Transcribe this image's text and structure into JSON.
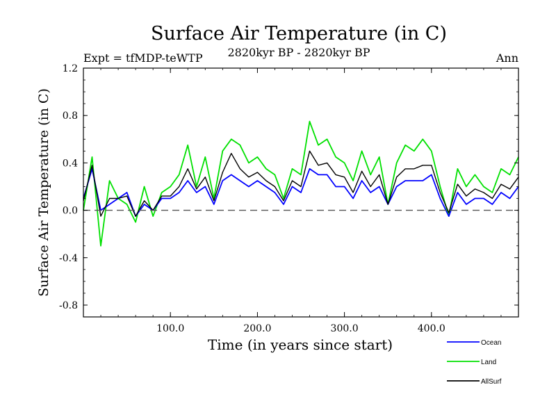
{
  "chart_data": {
    "type": "line",
    "title": "Surface Air Temperature (in C)",
    "subtitle_left": "Expt = tfMDP-teWTP",
    "subtitle_center": "2820kyr BP - 2820kyr BP",
    "subtitle_right": "Ann",
    "xlabel": "Time (in years since start)",
    "ylabel": "Surface Air Temperature (in C)",
    "xlim": [
      0,
      500
    ],
    "ylim": [
      -0.9,
      1.2
    ],
    "x_ticks": [
      {
        "value": 100,
        "label": "100.0"
      },
      {
        "value": 200,
        "label": "200.0"
      },
      {
        "value": 300,
        "label": "300.0"
      },
      {
        "value": 400,
        "label": "400.0"
      }
    ],
    "y_ticks": [
      {
        "value": -0.8,
        "label": "-0.8"
      },
      {
        "value": -0.4,
        "label": "-0.4"
      },
      {
        "value": 0.0,
        "label": "0.0"
      },
      {
        "value": 0.4,
        "label": "0.4"
      },
      {
        "value": 0.8,
        "label": "0.8"
      },
      {
        "value": 1.2,
        "label": "1.2"
      }
    ],
    "zero_line": true,
    "legend_position": "bottom-right",
    "series": [
      {
        "name": "Land",
        "color": "#00e000",
        "x": [
          0,
          10,
          20,
          30,
          40,
          50,
          60,
          70,
          80,
          90,
          100,
          110,
          120,
          130,
          140,
          150,
          160,
          170,
          180,
          190,
          200,
          210,
          220,
          230,
          240,
          250,
          260,
          270,
          280,
          290,
          300,
          310,
          320,
          330,
          340,
          350,
          360,
          370,
          380,
          390,
          400,
          410,
          420,
          430,
          440,
          450,
          460,
          470,
          480,
          490,
          500
        ],
        "values": [
          0.0,
          0.45,
          -0.3,
          0.25,
          0.1,
          0.05,
          -0.1,
          0.2,
          -0.05,
          0.15,
          0.2,
          0.3,
          0.55,
          0.2,
          0.45,
          0.1,
          0.5,
          0.6,
          0.55,
          0.4,
          0.45,
          0.35,
          0.3,
          0.1,
          0.35,
          0.3,
          0.75,
          0.55,
          0.6,
          0.45,
          0.4,
          0.25,
          0.5,
          0.3,
          0.45,
          0.05,
          0.4,
          0.55,
          0.5,
          0.6,
          0.5,
          0.2,
          -0.05,
          0.35,
          0.2,
          0.3,
          0.2,
          0.15,
          0.35,
          0.3,
          0.45
        ]
      },
      {
        "name": "Ocean",
        "color": "#0000ff",
        "x": [
          0,
          10,
          20,
          30,
          40,
          50,
          60,
          70,
          80,
          90,
          100,
          110,
          120,
          130,
          140,
          150,
          160,
          170,
          180,
          190,
          200,
          210,
          220,
          230,
          240,
          250,
          260,
          270,
          280,
          290,
          300,
          310,
          320,
          330,
          340,
          350,
          360,
          370,
          380,
          390,
          400,
          410,
          420,
          430,
          440,
          450,
          460,
          470,
          480,
          490,
          500
        ],
        "values": [
          0.1,
          0.35,
          0.0,
          0.05,
          0.1,
          0.15,
          -0.05,
          0.05,
          0.0,
          0.1,
          0.1,
          0.15,
          0.25,
          0.15,
          0.2,
          0.05,
          0.25,
          0.3,
          0.25,
          0.2,
          0.25,
          0.2,
          0.15,
          0.05,
          0.2,
          0.15,
          0.35,
          0.3,
          0.3,
          0.2,
          0.2,
          0.1,
          0.25,
          0.15,
          0.2,
          0.05,
          0.2,
          0.25,
          0.25,
          0.25,
          0.3,
          0.1,
          -0.05,
          0.15,
          0.05,
          0.1,
          0.1,
          0.05,
          0.15,
          0.1,
          0.2
        ]
      },
      {
        "name": "AllSurf",
        "color": "#000000",
        "x": [
          0,
          10,
          20,
          30,
          40,
          50,
          60,
          70,
          80,
          90,
          100,
          110,
          120,
          130,
          140,
          150,
          160,
          170,
          180,
          190,
          200,
          210,
          220,
          230,
          240,
          250,
          260,
          270,
          280,
          290,
          300,
          310,
          320,
          330,
          340,
          350,
          360,
          370,
          380,
          390,
          400,
          410,
          420,
          430,
          440,
          450,
          460,
          470,
          480,
          490,
          500
        ],
        "values": [
          0.08,
          0.38,
          -0.05,
          0.1,
          0.1,
          0.12,
          -0.05,
          0.08,
          0.0,
          0.12,
          0.12,
          0.2,
          0.35,
          0.18,
          0.28,
          0.08,
          0.32,
          0.48,
          0.35,
          0.28,
          0.32,
          0.25,
          0.2,
          0.08,
          0.25,
          0.2,
          0.5,
          0.38,
          0.4,
          0.3,
          0.28,
          0.15,
          0.33,
          0.2,
          0.3,
          0.05,
          0.28,
          0.35,
          0.35,
          0.38,
          0.38,
          0.15,
          -0.02,
          0.22,
          0.12,
          0.18,
          0.15,
          0.1,
          0.22,
          0.18,
          0.28
        ]
      }
    ]
  }
}
